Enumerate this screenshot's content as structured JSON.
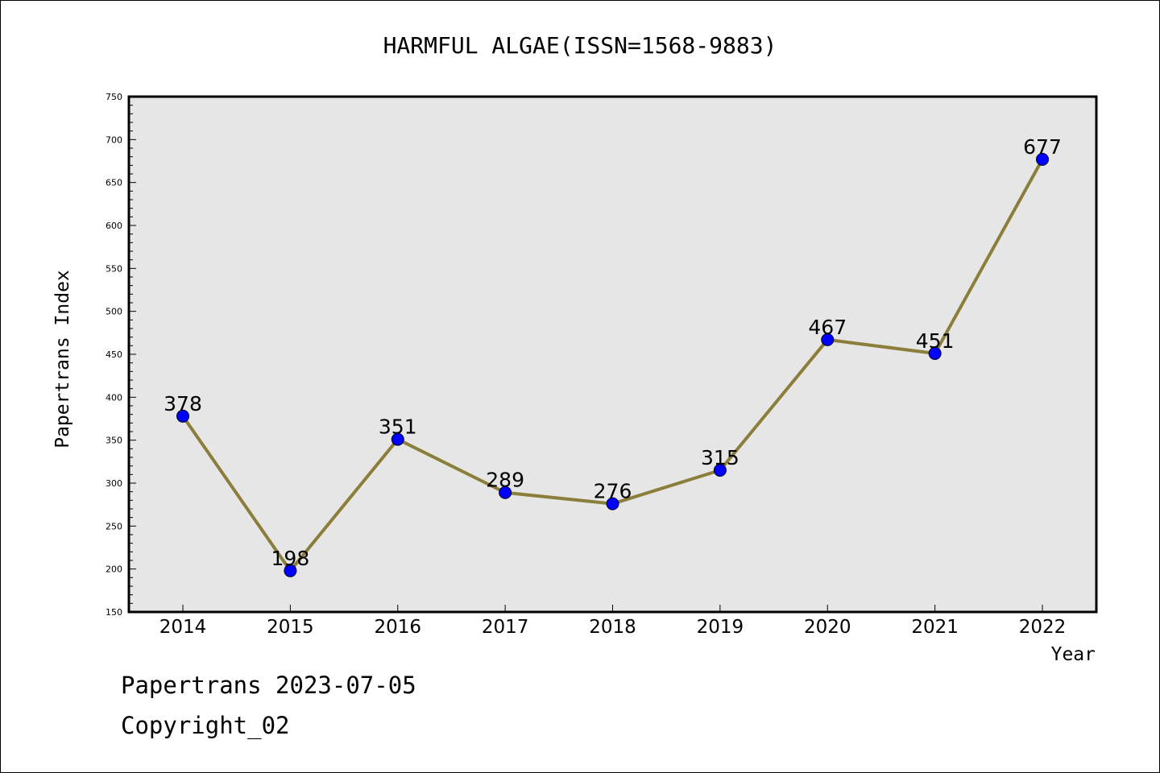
{
  "chart_data": {
    "type": "line",
    "title": "HARMFUL ALGAE(ISSN=1568-9883)",
    "xlabel": "Year",
    "ylabel": "Papertrans Index",
    "categories": [
      "2014",
      "2015",
      "2016",
      "2017",
      "2018",
      "2019",
      "2020",
      "2021",
      "2022"
    ],
    "series": [
      {
        "values": [
          378,
          198,
          351,
          289,
          276,
          315,
          467,
          451,
          677
        ]
      }
    ],
    "ylim": [
      150,
      750
    ],
    "yticks": [
      150,
      200,
      250,
      300,
      350,
      400,
      450,
      500,
      550,
      600,
      650,
      700,
      750
    ],
    "grid": false,
    "legend": "none",
    "colors": {
      "line": "#8B7D3A",
      "marker": "#0000FF",
      "plot_background": "#E6E6E6"
    }
  },
  "footer": {
    "line1": "Papertrans 2023-07-05",
    "line2": "Copyright_02"
  }
}
